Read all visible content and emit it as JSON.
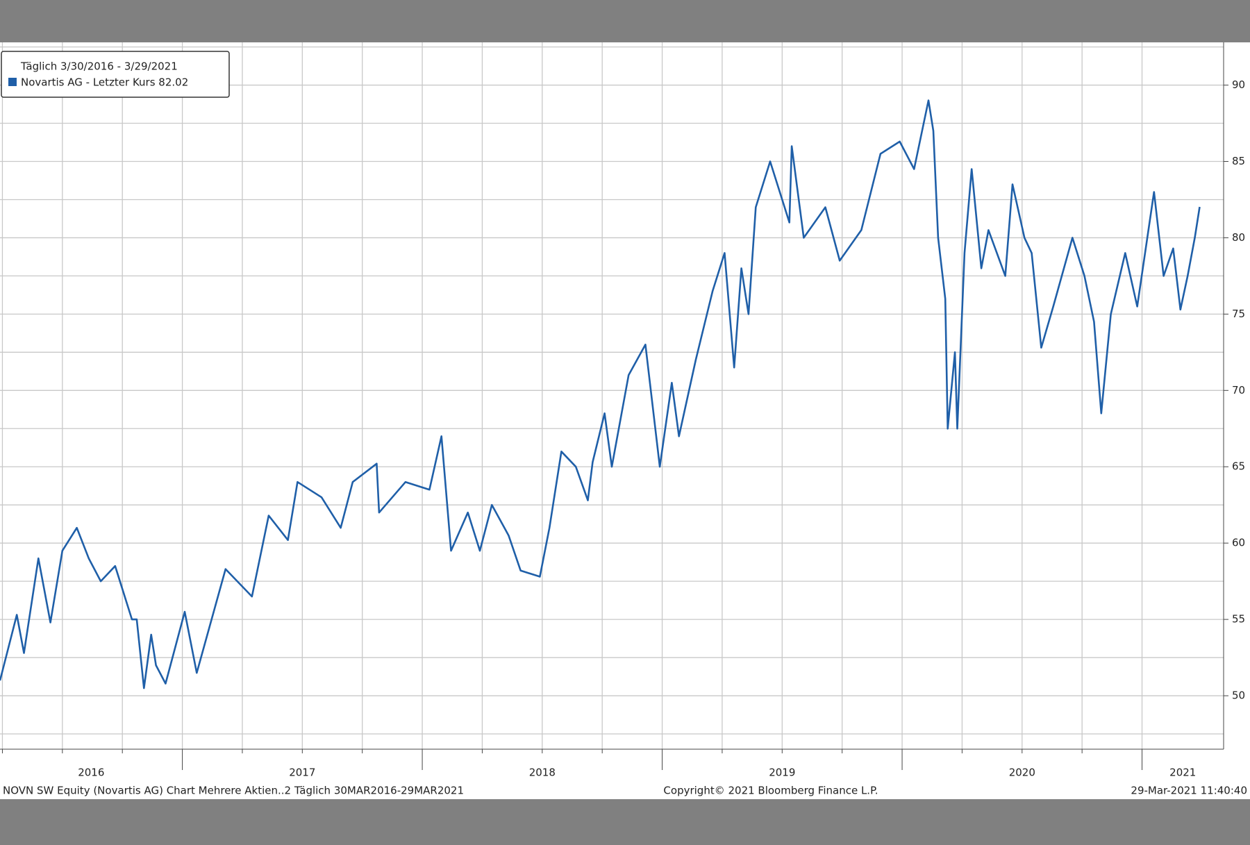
{
  "chart_data": {
    "type": "line",
    "legend_title": "Täglich 3/30/2016 - 3/29/2021",
    "legend": "upper left",
    "footer_left": "NOVN SW Equity (Novartis AG) Chart Mehrere Aktien..2  Täglich 30MAR2016-29MAR2021",
    "footer_center": "Copyright© 2021 Bloomberg Finance L.P.",
    "footer_right": "29-Mar-2021 11:40:40",
    "grid": true,
    "x": [
      2016.24,
      2016.31,
      2016.34,
      2016.4,
      2016.45,
      2016.5,
      2016.56,
      2016.61,
      2016.66,
      2016.72,
      2016.79,
      2016.81,
      2016.84,
      2016.87,
      2016.89,
      2016.93,
      2017.01,
      2017.06,
      2017.18,
      2017.29,
      2017.36,
      2017.44,
      2017.48,
      2017.58,
      2017.66,
      2017.71,
      2017.81,
      2017.82,
      2017.93,
      2018.03,
      2018.08,
      2018.12,
      2018.19,
      2018.24,
      2018.29,
      2018.36,
      2018.41,
      2018.49,
      2018.53,
      2018.58,
      2018.64,
      2018.69,
      2018.71,
      2018.76,
      2018.79,
      2018.86,
      2018.93,
      2018.99,
      2019.04,
      2019.07,
      2019.14,
      2019.21,
      2019.26,
      2019.3,
      2019.33,
      2019.36,
      2019.39,
      2019.45,
      2019.53,
      2019.54,
      2019.59,
      2019.68,
      2019.74,
      2019.83,
      2019.91,
      2019.99,
      2020.05,
      2020.11,
      2020.13,
      2020.15,
      2020.18,
      2020.19,
      2020.22,
      2020.23,
      2020.26,
      2020.29,
      2020.33,
      2020.36,
      2020.43,
      2020.46,
      2020.51,
      2020.54,
      2020.58,
      2020.63,
      2020.71,
      2020.76,
      2020.8,
      2020.83,
      2020.87,
      2020.93,
      2020.98,
      2021.05,
      2021.09,
      2021.13,
      2021.16,
      2021.19,
      2021.22,
      2021.24
    ],
    "series": [
      {
        "name": "Novartis AG - Letzter Kurs 82.02",
        "color": "#1f5fa8",
        "values": [
          51.0,
          55.3,
          52.8,
          59.0,
          54.8,
          59.5,
          61.0,
          59.0,
          57.5,
          58.5,
          55.0,
          55.0,
          50.5,
          54.0,
          52.0,
          50.8,
          55.5,
          51.5,
          58.3,
          56.5,
          61.8,
          60.2,
          64.0,
          63.0,
          61.0,
          64.0,
          65.2,
          62.0,
          64.0,
          63.5,
          67.0,
          59.5,
          62.0,
          59.5,
          62.5,
          60.5,
          58.2,
          57.8,
          61.0,
          66.0,
          65.0,
          62.8,
          65.3,
          68.5,
          65.0,
          71.0,
          73.0,
          65.0,
          70.5,
          67.0,
          72.0,
          76.5,
          79.0,
          71.5,
          78.0,
          75.0,
          82.0,
          85.0,
          81.0,
          86.0,
          80.0,
          82.0,
          78.5,
          80.5,
          85.5,
          86.3,
          84.5,
          89.0,
          87.0,
          80.0,
          76.0,
          67.5,
          72.5,
          67.5,
          79.0,
          84.5,
          78.0,
          80.5,
          77.5,
          83.5,
          80.0,
          79.0,
          72.8,
          75.5,
          80.0,
          77.5,
          74.5,
          68.5,
          75.0,
          79.0,
          75.5,
          83.0,
          77.5,
          79.3,
          75.3,
          77.5,
          80.0,
          82.02
        ]
      }
    ],
    "xlim": [
      2016.24,
      2021.34
    ],
    "xticks": [
      {
        "value": 2016,
        "label": "2016"
      },
      {
        "value": 2017,
        "label": "2017"
      },
      {
        "value": 2018,
        "label": "2018"
      },
      {
        "value": 2019,
        "label": "2019"
      },
      {
        "value": 2020,
        "label": "2020"
      },
      {
        "value": 2021,
        "label": "2021"
      }
    ],
    "ylim": [
      46.5,
      92.8
    ],
    "yticks": [
      50,
      55,
      60,
      65,
      70,
      75,
      80,
      85,
      90
    ]
  }
}
